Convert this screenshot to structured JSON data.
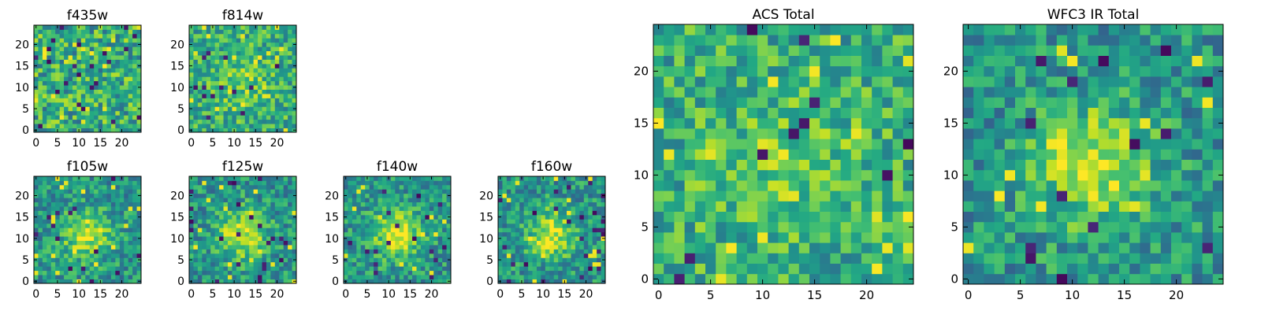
{
  "chart_data": [
    {
      "type": "heatmap",
      "title": "f435w",
      "xlabel": "",
      "ylabel": "",
      "xlim": [
        0,
        24
      ],
      "ylim": [
        0,
        24
      ],
      "xticks": [
        "0",
        "5",
        "10",
        "15",
        "20"
      ],
      "yticks": [
        "0",
        "5",
        "10",
        "15",
        "20"
      ],
      "colormap": "viridis",
      "pattern": "noise",
      "seed": 11
    },
    {
      "type": "heatmap",
      "title": "f814w",
      "xlabel": "",
      "ylabel": "",
      "xlim": [
        0,
        24
      ],
      "ylim": [
        0,
        24
      ],
      "xticks": [
        "0",
        "5",
        "10",
        "15",
        "20"
      ],
      "yticks": [
        "0",
        "5",
        "10",
        "15",
        "20"
      ],
      "colormap": "viridis",
      "pattern": "faint-source",
      "seed": 23
    },
    {
      "type": "heatmap",
      "title": "f105w",
      "xlabel": "",
      "ylabel": "",
      "xlim": [
        0,
        24
      ],
      "ylim": [
        0,
        24
      ],
      "xticks": [
        "0",
        "5",
        "10",
        "15",
        "20"
      ],
      "yticks": [
        "0",
        "5",
        "10",
        "15",
        "20"
      ],
      "colormap": "viridis",
      "pattern": "source",
      "seed": 37
    },
    {
      "type": "heatmap",
      "title": "f125w",
      "xlabel": "",
      "ylabel": "",
      "xlim": [
        0,
        24
      ],
      "ylim": [
        0,
        24
      ],
      "xticks": [
        "0",
        "5",
        "10",
        "15",
        "20"
      ],
      "yticks": [
        "0",
        "5",
        "10",
        "15",
        "20"
      ],
      "colormap": "viridis",
      "pattern": "source",
      "seed": 41
    },
    {
      "type": "heatmap",
      "title": "f140w",
      "xlabel": "",
      "ylabel": "",
      "xlim": [
        0,
        24
      ],
      "ylim": [
        0,
        24
      ],
      "xticks": [
        "0",
        "5",
        "10",
        "15",
        "20"
      ],
      "yticks": [
        "0",
        "5",
        "10",
        "15",
        "20"
      ],
      "colormap": "viridis",
      "pattern": "source",
      "seed": 53
    },
    {
      "type": "heatmap",
      "title": "f160w",
      "xlabel": "",
      "ylabel": "",
      "xlim": [
        0,
        24
      ],
      "ylim": [
        0,
        24
      ],
      "xticks": [
        "0",
        "5",
        "10",
        "15",
        "20"
      ],
      "yticks": [
        "0",
        "5",
        "10",
        "15",
        "20"
      ],
      "colormap": "viridis",
      "pattern": "source",
      "seed": 67
    },
    {
      "type": "heatmap",
      "title": "ACS Total",
      "xlabel": "",
      "ylabel": "",
      "xlim": [
        0,
        24
      ],
      "ylim": [
        0,
        24
      ],
      "xticks": [
        "0",
        "5",
        "10",
        "15",
        "20"
      ],
      "yticks": [
        "0",
        "5",
        "10",
        "15",
        "20"
      ],
      "colormap": "viridis",
      "pattern": "faint-source",
      "seed": 79
    },
    {
      "type": "heatmap",
      "title": "WFC3 IR Total",
      "xlabel": "",
      "ylabel": "",
      "xlim": [
        0,
        24
      ],
      "ylim": [
        0,
        24
      ],
      "xticks": [
        "0",
        "5",
        "10",
        "15",
        "20"
      ],
      "yticks": [
        "0",
        "5",
        "10",
        "15",
        "20"
      ],
      "colormap": "viridis",
      "pattern": "source",
      "seed": 97
    }
  ]
}
